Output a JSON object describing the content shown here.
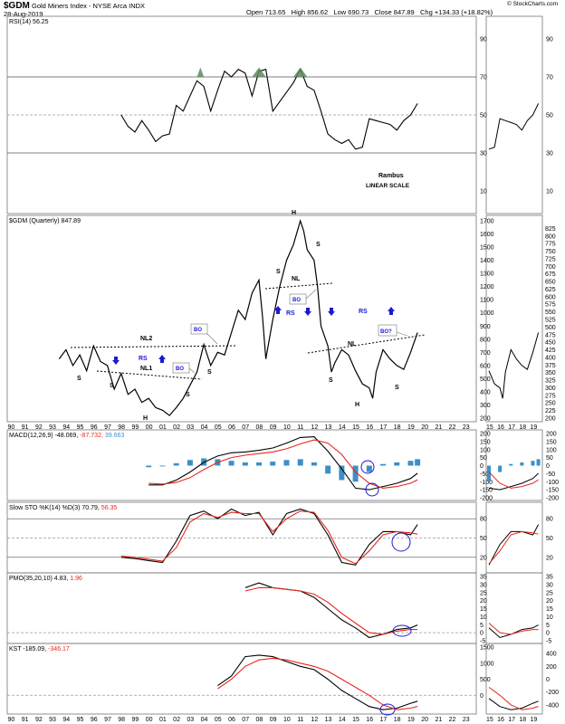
{
  "header": {
    "symbol": "$GDM",
    "name": "Gold Miners Index - NYSE Arca INDX",
    "date": "28-Aug-2019",
    "open_label": "Open",
    "open": "713.65",
    "high_label": "High",
    "high": "856.62",
    "low_label": "Low",
    "low": "690.73",
    "close_label": "Close",
    "close": "847.89",
    "chg_label": "Chg",
    "chg": "+134.33 (+18.82%)",
    "source": "© StockCharts.com"
  },
  "panels": {
    "rsi_label": "RSI(14) 56.25",
    "price_label": "$GDM (Quarterly) 847.89",
    "macd_label_a": "MACD(12,26,9) -48.069,",
    "macd_label_b": "-87.732,",
    "macd_label_c": "39.663",
    "sto_label_a": "Slow STO %K(14) %D(3) 70.79,",
    "sto_label_b": "56.35",
    "pmo_label_a": "PMO(35,20,10) 4.83,",
    "pmo_label_b": "1.96",
    "kst_label_a": "KST -185.09,",
    "kst_label_b": "-346.17"
  },
  "colors": {
    "price": "#000000",
    "signal": "#e8261b",
    "hist": "#3c8fc9",
    "blue": "#1a1ad4",
    "axis": "#999999",
    "ob": "#5a8a5a"
  },
  "annotations": {
    "rambus": "Rambus",
    "linear": "LINEAR SCALE",
    "nl2": "NL2",
    "nl1": "NL1",
    "nl": "NL",
    "nl_right": "NL",
    "h1": "H",
    "h2": "H",
    "h3": "H",
    "s": "S",
    "rs": "RS",
    "bo": "BO",
    "bo2": "BO?"
  },
  "x_labels": [
    "90",
    "91",
    "92",
    "93",
    "94",
    "95",
    "96",
    "97",
    "98",
    "99",
    "00",
    "01",
    "02",
    "03",
    "04",
    "05",
    "06",
    "07",
    "08",
    "09",
    "10",
    "11",
    "12",
    "13",
    "14",
    "15",
    "16",
    "17",
    "18",
    "19",
    "20",
    "21",
    "22",
    "23"
  ],
  "x_labels_right": [
    "15",
    "16",
    "17",
    "18",
    "19"
  ],
  "chart_data": [
    {
      "type": "line",
      "title": "RSI(14)",
      "ylim": [
        0,
        100
      ],
      "x": [
        1998,
        1998.5,
        1999,
        1999.5,
        2000,
        2000.5,
        2001,
        2001.5,
        2002,
        2002.5,
        2003,
        2003.5,
        2004,
        2004.5,
        2005,
        2005.5,
        2006,
        2006.5,
        2007,
        2007.5,
        2008,
        2008.5,
        2009,
        2009.5,
        2010,
        2010.5,
        2011,
        2011.5,
        2012,
        2012.5,
        2013,
        2013.5,
        2014,
        2014.5,
        2015,
        2015.5,
        2016,
        2016.5,
        2017,
        2017.5,
        2018,
        2018.5,
        2019,
        2019.5
      ],
      "values": [
        50,
        44,
        41,
        47,
        42,
        36,
        39,
        40,
        55,
        52,
        60,
        68,
        65,
        52,
        63,
        73,
        70,
        74,
        72,
        60,
        73,
        74,
        52,
        57,
        62,
        67,
        74,
        65,
        63,
        52,
        40,
        37,
        35,
        37,
        32,
        33,
        48,
        47,
        46,
        45,
        42,
        47,
        50,
        56
      ]
    },
    {
      "type": "line",
      "title": "$GDM (Quarterly)",
      "ylim": [
        200,
        1700
      ],
      "x": [
        1993.5,
        1994,
        1994.5,
        1995,
        1995.5,
        1996,
        1996.5,
        1997,
        1997.5,
        1998,
        1998.5,
        1999,
        1999.5,
        2000,
        2000.5,
        2001,
        2001.5,
        2002,
        2002.5,
        2003,
        2003.5,
        2004,
        2004.5,
        2005,
        2005.5,
        2006,
        2006.5,
        2007,
        2007.5,
        2008,
        2008.25,
        2008.5,
        2009,
        2009.5,
        2010,
        2010.5,
        2011,
        2011.25,
        2011.5,
        2012,
        2012.25,
        2012.5,
        2013,
        2013.25,
        2013.5,
        2014,
        2014.5,
        2015,
        2015.5,
        2016,
        2016.25,
        2016.5,
        2017,
        2017.5,
        2018,
        2018.5,
        2019,
        2019.5
      ],
      "values": [
        650,
        720,
        600,
        680,
        560,
        750,
        630,
        600,
        420,
        540,
        380,
        420,
        320,
        350,
        280,
        260,
        220,
        280,
        350,
        450,
        550,
        760,
        600,
        700,
        680,
        850,
        1020,
        950,
        1150,
        1250,
        980,
        650,
        950,
        1200,
        1400,
        1520,
        1700,
        1620,
        1480,
        1400,
        1200,
        900,
        750,
        550,
        620,
        720,
        680,
        560,
        460,
        430,
        350,
        550,
        720,
        650,
        600,
        570,
        700,
        850
      ]
    },
    {
      "type": "line",
      "title": "MACD(12,26,9)",
      "ylim": [
        -200,
        200
      ],
      "x": [
        2000,
        2001,
        2002,
        2003,
        2004,
        2005,
        2006,
        2007,
        2008,
        2009,
        2010,
        2011,
        2012,
        2013,
        2014,
        2015,
        2016,
        2017,
        2018,
        2019,
        2019.5
      ],
      "series": [
        {
          "name": "MACD",
          "values": [
            -120,
            -120,
            -90,
            -40,
            20,
            60,
            80,
            85,
            95,
            110,
            140,
            175,
            180,
            90,
            -20,
            -140,
            -150,
            -130,
            -110,
            -80,
            -48
          ]
        },
        {
          "name": "Signal",
          "values": [
            -110,
            -115,
            -105,
            -75,
            -25,
            20,
            50,
            65,
            75,
            85,
            105,
            135,
            160,
            140,
            70,
            -40,
            -110,
            -140,
            -130,
            -110,
            -88
          ]
        },
        {
          "name": "Histogram",
          "values": [
            -10,
            -5,
            15,
            35,
            45,
            40,
            30,
            20,
            20,
            25,
            35,
            40,
            20,
            -50,
            -90,
            -100,
            -40,
            10,
            20,
            30,
            40
          ]
        }
      ]
    },
    {
      "type": "line",
      "title": "Slow STO %K(14) %D(3)",
      "ylim": [
        0,
        100
      ],
      "x": [
        1998,
        1999,
        2000,
        2001,
        2002,
        2003,
        2004,
        2005,
        2006,
        2007,
        2008,
        2009,
        2010,
        2011,
        2012,
        2013,
        2014,
        2015,
        2016,
        2017,
        2018,
        2019,
        2019.5
      ],
      "series": [
        {
          "name": "%K",
          "values": [
            20,
            18,
            15,
            12,
            45,
            85,
            92,
            80,
            95,
            85,
            90,
            55,
            88,
            95,
            88,
            55,
            12,
            8,
            40,
            60,
            60,
            55,
            71
          ]
        },
        {
          "name": "%D",
          "values": [
            22,
            20,
            17,
            14,
            35,
            75,
            88,
            82,
            90,
            88,
            88,
            60,
            80,
            92,
            90,
            62,
            20,
            10,
            30,
            55,
            60,
            58,
            56
          ]
        }
      ]
    },
    {
      "type": "line",
      "title": "PMO(35,20,10)",
      "ylim": [
        -5,
        35
      ],
      "x": [
        2007,
        2008,
        2009,
        2010,
        2011,
        2012,
        2013,
        2014,
        2015,
        2016,
        2017,
        2018,
        2019,
        2019.5
      ],
      "series": [
        {
          "name": "PMO",
          "values": [
            28,
            31,
            28,
            27,
            26,
            22,
            15,
            8,
            3,
            -3,
            -1,
            2,
            3,
            4.83
          ]
        },
        {
          "name": "Signal",
          "values": [
            26,
            28,
            28,
            27,
            26,
            24,
            19,
            12,
            6,
            0,
            -1,
            1,
            2,
            1.96
          ]
        }
      ]
    },
    {
      "type": "line",
      "title": "KST",
      "ylim": [
        -500,
        1500
      ],
      "x": [
        2005,
        2006,
        2007,
        2008,
        2009,
        2010,
        2011,
        2012,
        2013,
        2014,
        2015,
        2016,
        2017,
        2018,
        2019,
        2019.5
      ],
      "series": [
        {
          "name": "KST",
          "values": [
            300,
            600,
            1200,
            1250,
            1200,
            1050,
            900,
            800,
            500,
            150,
            -100,
            -350,
            -450,
            -400,
            -250,
            -185
          ]
        },
        {
          "name": "Signal",
          "values": [
            200,
            500,
            900,
            1100,
            1150,
            1100,
            1000,
            900,
            750,
            500,
            250,
            0,
            -300,
            -450,
            -400,
            -346
          ]
        }
      ]
    }
  ]
}
